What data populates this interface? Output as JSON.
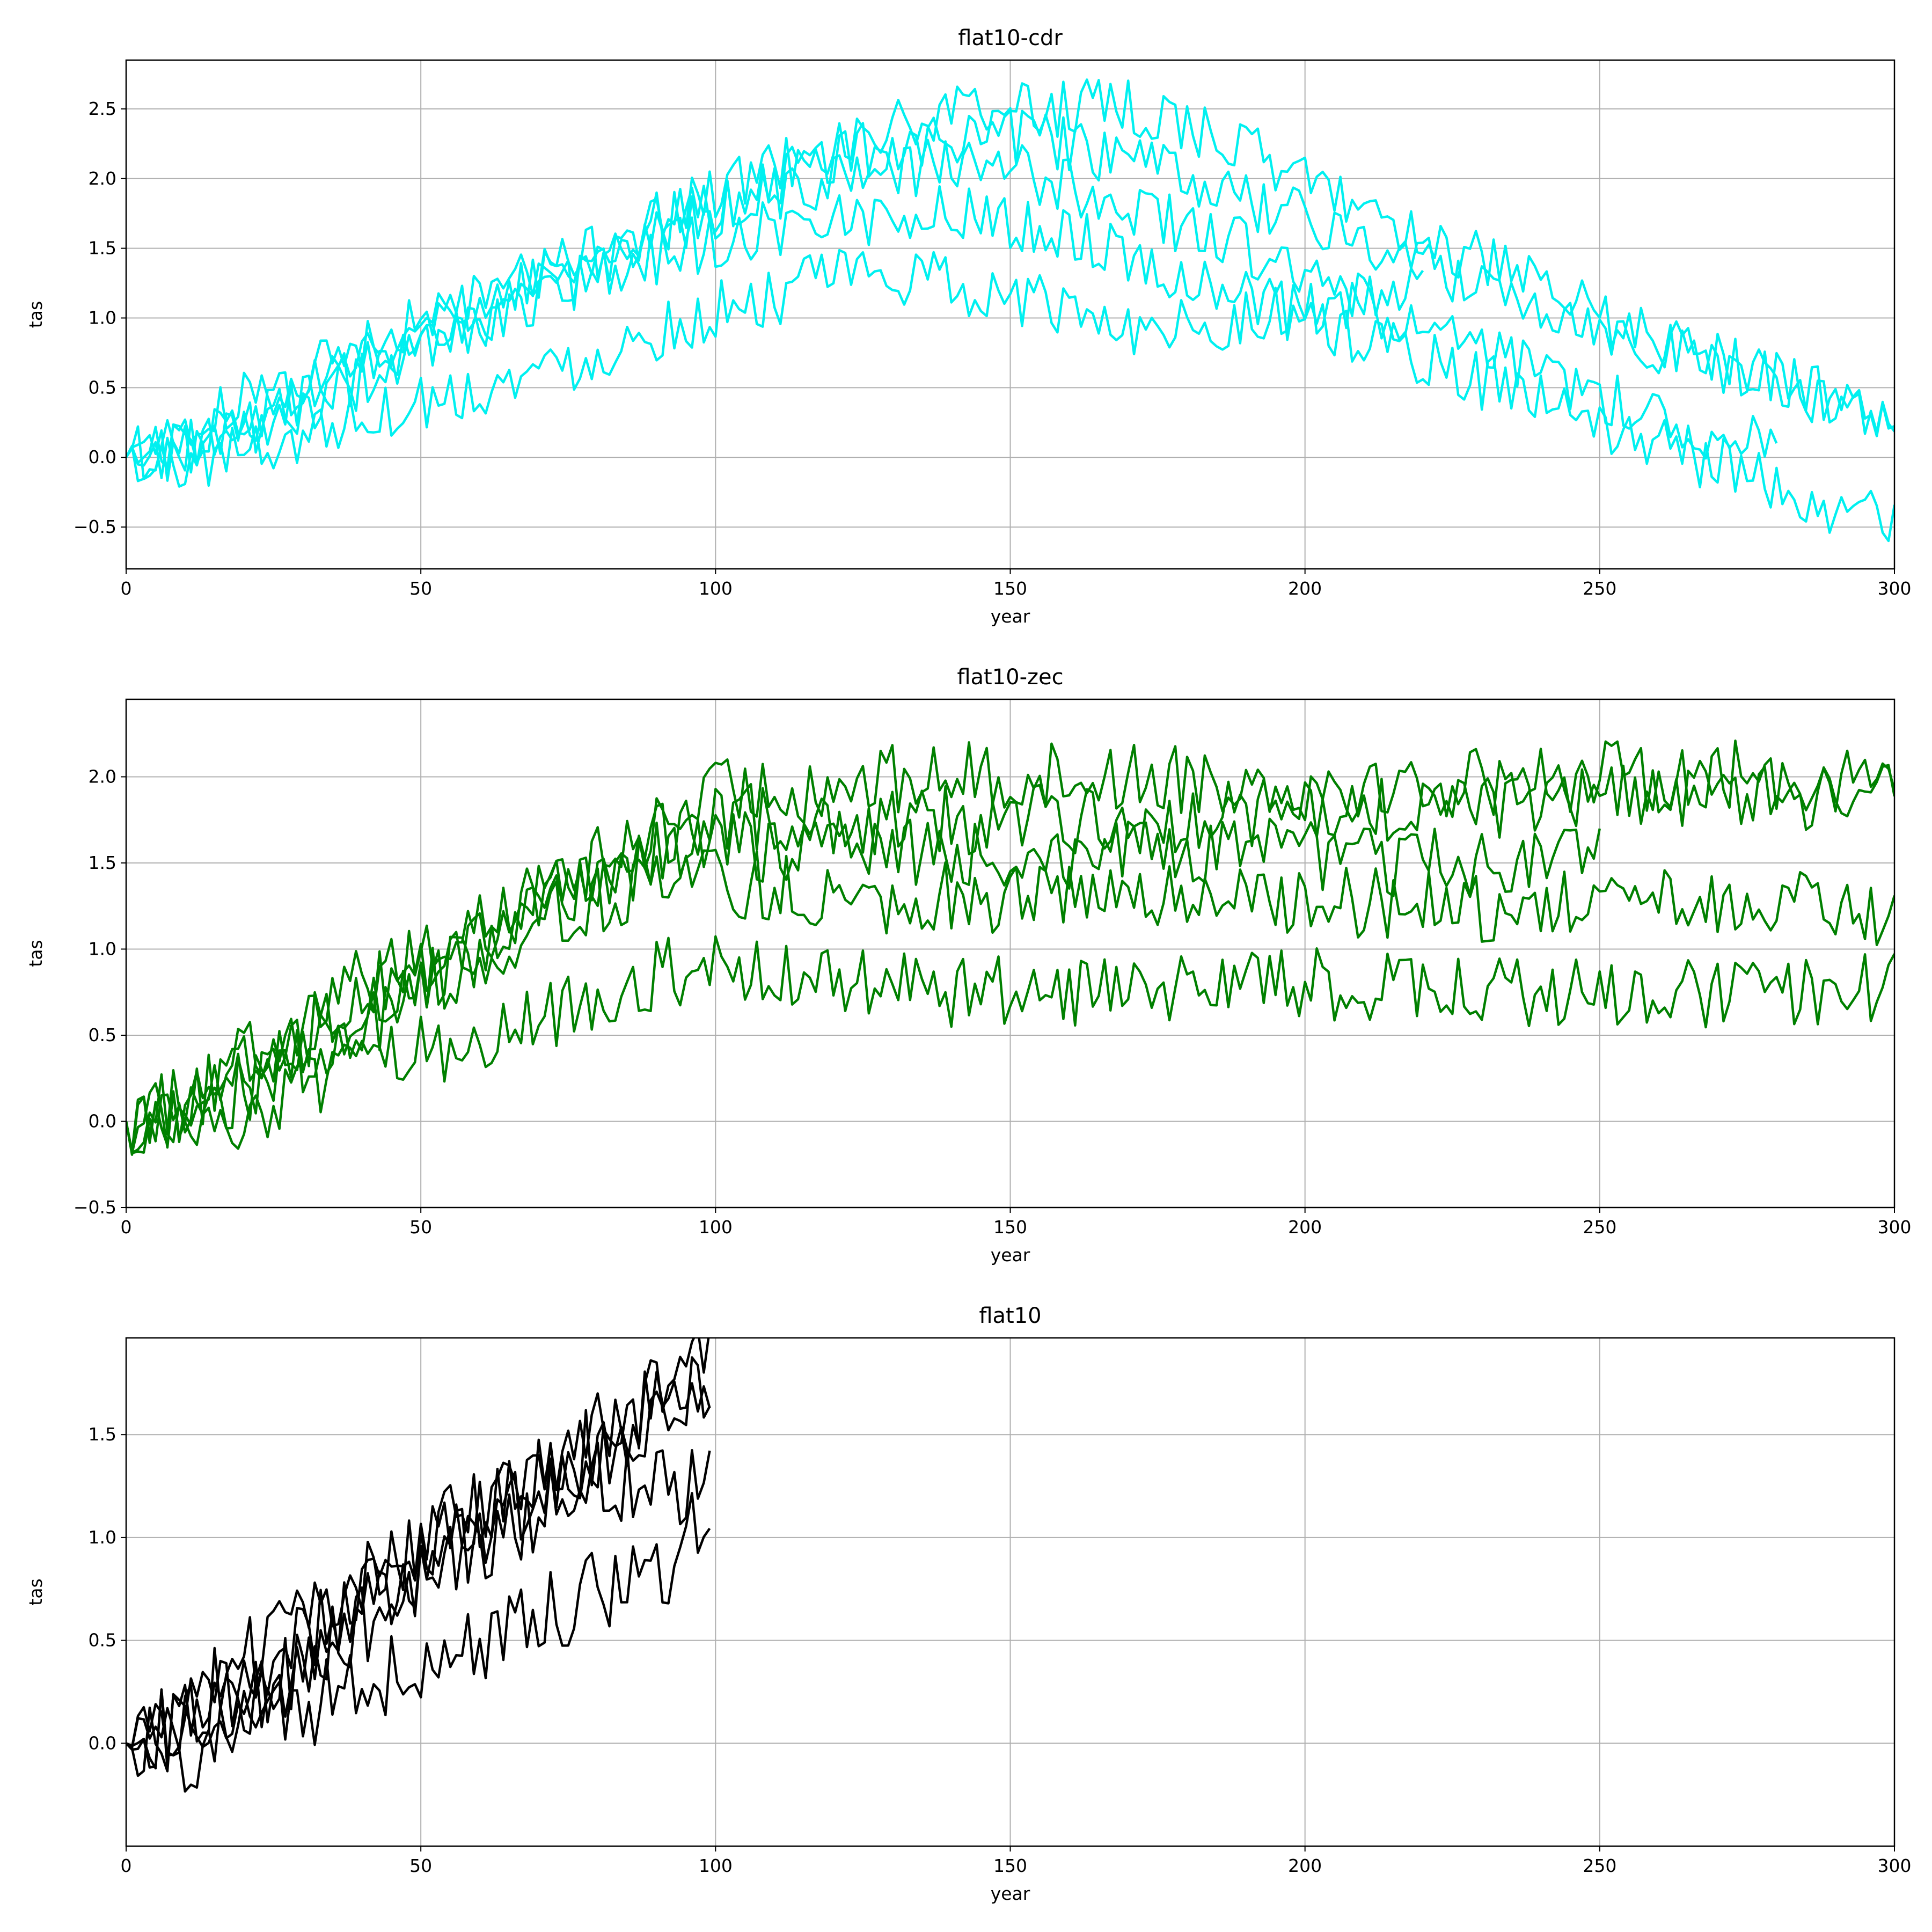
{
  "chart_data": [
    {
      "type": "line",
      "title": "flat10-cdr",
      "xlabel": "year",
      "ylabel": "tas",
      "xlim": [
        0,
        300
      ],
      "ylim": [
        -0.8,
        2.85
      ],
      "xticks": [
        0,
        50,
        100,
        150,
        200,
        250,
        300
      ],
      "yticks": [
        -0.5,
        0.0,
        0.5,
        1.0,
        1.5,
        2.0,
        2.5
      ],
      "xtick_labels": [
        "0",
        "50",
        "100",
        "150",
        "200",
        "250",
        "300"
      ],
      "ytick_labels": [
        "−0.5",
        "0.0",
        "0.5",
        "1.0",
        "1.5",
        "2.0",
        "2.5"
      ],
      "grid": true,
      "color": "#00f0f0",
      "series": [
        {
          "x": [
            0,
            10,
            20,
            30,
            40,
            50,
            60,
            70,
            80,
            90,
            100,
            110,
            120,
            130,
            140,
            150,
            160,
            170,
            180,
            190,
            200,
            210,
            220,
            230,
            240,
            250,
            260,
            270,
            280,
            290,
            300
          ],
          "values": [
            0.0,
            0.1,
            0.3,
            0.5,
            0.75,
            0.95,
            1.15,
            1.3,
            1.5,
            1.7,
            1.9,
            2.1,
            2.25,
            2.35,
            2.45,
            2.5,
            2.5,
            2.5,
            2.4,
            2.2,
            2.0,
            1.8,
            1.6,
            1.4,
            1.2,
            1.0,
            0.85,
            0.7,
            0.55,
            0.4,
            0.3
          ]
        },
        {
          "x": [
            0,
            10,
            20,
            30,
            40,
            50,
            60,
            70,
            80,
            90,
            100,
            110,
            120,
            130,
            140,
            150,
            160,
            170,
            180,
            190,
            200,
            210,
            220,
            230,
            240,
            250,
            260,
            270,
            280,
            290,
            300
          ],
          "values": [
            0.0,
            0.15,
            0.4,
            0.6,
            0.8,
            0.95,
            1.1,
            1.3,
            1.45,
            1.65,
            1.8,
            2.0,
            2.15,
            2.25,
            2.3,
            2.3,
            2.25,
            2.1,
            2.0,
            1.85,
            1.7,
            1.55,
            1.4,
            1.25,
            1.1,
            0.95,
            0.8,
            0.65,
            0.55,
            0.45,
            0.2
          ]
        },
        {
          "x": [
            0,
            10,
            20,
            30,
            40,
            50,
            60,
            70,
            80,
            90,
            100,
            110,
            120,
            130,
            140,
            150,
            160,
            170,
            180,
            190,
            200,
            210,
            220,
            230,
            240,
            250,
            260,
            270,
            280
          ],
          "values": [
            0.0,
            0.05,
            0.2,
            0.4,
            0.6,
            0.8,
            1.0,
            1.2,
            1.35,
            1.55,
            1.75,
            1.9,
            2.0,
            2.05,
            2.1,
            2.05,
            1.95,
            1.8,
            1.65,
            1.5,
            1.3,
            1.1,
            0.9,
            0.75,
            0.6,
            0.45,
            0.3,
            0.15,
            0.15
          ]
        },
        {
          "x": [
            0,
            10,
            20,
            30,
            40,
            50,
            60,
            70,
            80,
            90,
            100,
            110,
            120,
            130,
            140,
            150,
            160,
            170,
            180,
            190,
            200,
            210,
            220,
            230,
            240,
            250,
            260,
            270,
            280,
            290,
            300
          ],
          "values": [
            0.0,
            0.1,
            0.2,
            0.35,
            0.55,
            0.75,
            0.95,
            1.15,
            1.3,
            1.45,
            1.55,
            1.65,
            1.7,
            1.75,
            1.75,
            1.7,
            1.6,
            1.45,
            1.3,
            1.15,
            1.0,
            0.85,
            0.7,
            0.55,
            0.4,
            0.25,
            0.1,
            -0.05,
            -0.2,
            -0.35,
            -0.45
          ]
        },
        {
          "x": [
            0,
            10,
            20,
            30,
            40,
            50,
            60,
            70,
            80,
            90,
            100,
            110,
            120,
            130,
            140,
            150,
            160,
            170,
            180,
            190,
            200,
            210,
            220
          ],
          "values": [
            0.0,
            -0.05,
            0.05,
            0.15,
            0.3,
            0.4,
            0.5,
            0.6,
            0.75,
            0.9,
            1.05,
            1.15,
            1.3,
            1.3,
            1.25,
            1.15,
            1.05,
            0.95,
            0.95,
            1.0,
            1.05,
            1.1,
            1.2
          ]
        }
      ]
    },
    {
      "type": "line",
      "title": "flat10-zec",
      "xlabel": "year",
      "ylabel": "tas",
      "xlim": [
        0,
        300
      ],
      "ylim": [
        -0.5,
        2.45
      ],
      "xticks": [
        0,
        50,
        100,
        150,
        200,
        250,
        300
      ],
      "yticks": [
        -0.5,
        0.0,
        0.5,
        1.0,
        1.5,
        2.0
      ],
      "xtick_labels": [
        "0",
        "50",
        "100",
        "150",
        "200",
        "250",
        "300"
      ],
      "ytick_labels": [
        "−0.5",
        "0.0",
        "0.5",
        "1.0",
        "1.5",
        "2.0"
      ],
      "grid": true,
      "color": "#008000",
      "series": [
        {
          "x": [
            0,
            10,
            20,
            30,
            40,
            50,
            60,
            70,
            80,
            90,
            100,
            120,
            140,
            160,
            180,
            200,
            220,
            240,
            260,
            280,
            300
          ],
          "values": [
            0.0,
            0.1,
            0.3,
            0.5,
            0.75,
            0.95,
            1.15,
            1.3,
            1.5,
            1.7,
            1.9,
            1.95,
            2.0,
            2.0,
            2.0,
            1.95,
            1.95,
            2.0,
            2.0,
            2.0,
            2.0
          ]
        },
        {
          "x": [
            0,
            10,
            20,
            30,
            40,
            50,
            60,
            70,
            80,
            90,
            100,
            120,
            140,
            160,
            180,
            200,
            220,
            240,
            260,
            280,
            300
          ],
          "values": [
            0.0,
            0.15,
            0.4,
            0.6,
            0.8,
            0.95,
            1.1,
            1.3,
            1.45,
            1.65,
            1.75,
            1.75,
            1.75,
            1.75,
            1.75,
            1.8,
            1.8,
            1.85,
            1.9,
            1.9,
            1.9
          ]
        },
        {
          "x": [
            0,
            10,
            20,
            30,
            40,
            50,
            60,
            70,
            80,
            90,
            100,
            120,
            140,
            160,
            180,
            200,
            220,
            240,
            250
          ],
          "values": [
            0.0,
            0.05,
            0.2,
            0.4,
            0.6,
            0.8,
            1.0,
            1.2,
            1.35,
            1.55,
            1.6,
            1.6,
            1.55,
            1.55,
            1.55,
            1.55,
            1.5,
            1.5,
            1.65
          ]
        },
        {
          "x": [
            0,
            10,
            20,
            30,
            40,
            50,
            60,
            70,
            80,
            90,
            100,
            120,
            140,
            160,
            180,
            200,
            220,
            240,
            260,
            280,
            300
          ],
          "values": [
            0.0,
            0.1,
            0.2,
            0.35,
            0.55,
            0.75,
            0.95,
            1.15,
            1.3,
            1.35,
            1.4,
            1.3,
            1.3,
            1.3,
            1.3,
            1.3,
            1.25,
            1.25,
            1.25,
            1.25,
            1.2
          ]
        },
        {
          "x": [
            0,
            10,
            20,
            30,
            40,
            50,
            60,
            70,
            80,
            90,
            100,
            120,
            140,
            160,
            180,
            200,
            220,
            240,
            260,
            280,
            300
          ],
          "values": [
            0.0,
            -0.05,
            0.05,
            0.15,
            0.3,
            0.4,
            0.5,
            0.6,
            0.75,
            0.85,
            0.9,
            0.8,
            0.75,
            0.75,
            0.8,
            0.8,
            0.75,
            0.75,
            0.75,
            0.75,
            0.8
          ]
        }
      ]
    },
    {
      "type": "line",
      "title": "flat10",
      "xlabel": "year",
      "ylabel": "tas",
      "xlim": [
        0,
        300
      ],
      "ylim": [
        -0.5,
        1.97
      ],
      "xticks": [
        0,
        50,
        100,
        150,
        200,
        250,
        300
      ],
      "yticks": [
        0.0,
        0.5,
        1.0,
        1.5
      ],
      "xtick_labels": [
        "0",
        "50",
        "100",
        "150",
        "200",
        "250",
        "300"
      ],
      "ytick_labels": [
        "0.0",
        "0.5",
        "1.0",
        "1.5"
      ],
      "grid": true,
      "color": "#000000",
      "series": [
        {
          "x": [
            0,
            10,
            20,
            30,
            40,
            50,
            60,
            70,
            80,
            90,
            99
          ],
          "values": [
            0.0,
            0.1,
            0.3,
            0.5,
            0.75,
            0.95,
            1.15,
            1.3,
            1.5,
            1.7,
            1.85
          ]
        },
        {
          "x": [
            0,
            10,
            20,
            30,
            40,
            50,
            60,
            70,
            80,
            90,
            99
          ],
          "values": [
            0.0,
            0.15,
            0.4,
            0.6,
            0.8,
            0.95,
            1.1,
            1.3,
            1.45,
            1.65,
            1.75
          ]
        },
        {
          "x": [
            0,
            10,
            20,
            30,
            40,
            50,
            60,
            70,
            80,
            90,
            99
          ],
          "values": [
            0.0,
            0.05,
            0.2,
            0.4,
            0.6,
            0.8,
            1.0,
            1.2,
            1.35,
            1.55,
            1.6
          ]
        },
        {
          "x": [
            0,
            10,
            20,
            30,
            40,
            50,
            60,
            70,
            80,
            90,
            99
          ],
          "values": [
            0.0,
            0.1,
            0.2,
            0.35,
            0.55,
            0.75,
            0.95,
            1.15,
            1.3,
            1.25,
            1.25
          ]
        },
        {
          "x": [
            0,
            10,
            20,
            30,
            40,
            50,
            60,
            70,
            80,
            90,
            99
          ],
          "values": [
            0.0,
            -0.05,
            0.05,
            0.15,
            0.3,
            0.4,
            0.5,
            0.6,
            0.75,
            0.8,
            1.15
          ]
        }
      ]
    }
  ]
}
